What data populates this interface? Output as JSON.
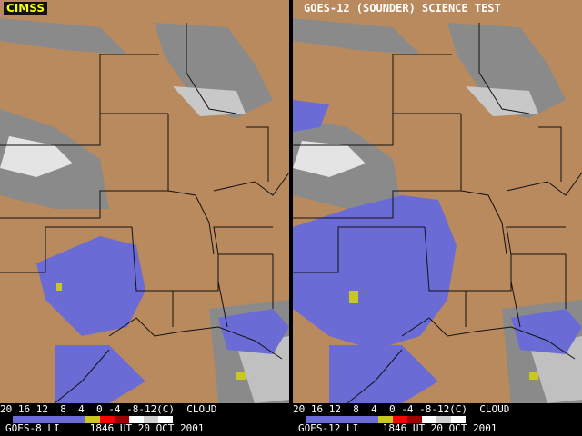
{
  "left": {
    "badge": "CIMSS",
    "legend_ticks": "20 16 12  8  4  0 -4 -8-12(C)  CLOUD",
    "footer": "GOES-8 LI     1846 UT 20 OCT 2001"
  },
  "right": {
    "title": "GOES-12 (SOUNDER) SCIENCE TEST",
    "legend_ticks": "20 16 12  8  4  0 -4 -8-12(C)  CLOUD",
    "footer": "GOES-12 LI    1846 UT 20 OCT 2001"
  },
  "colors": {
    "land": "#b98a5e",
    "cloud": "#8a8a8a",
    "unstable": "#6b6bd6",
    "very_unstable": "#c8c820"
  },
  "legend_colors": [
    "#6b6bd6",
    "#6b6bd6",
    "#6b6bd6",
    "#6b6bd6",
    "#6b6bd6",
    "#c8c820",
    "#ff0000",
    "#a00000",
    "#ffffff",
    "#d0d0d0",
    "#ffffff"
  ]
}
